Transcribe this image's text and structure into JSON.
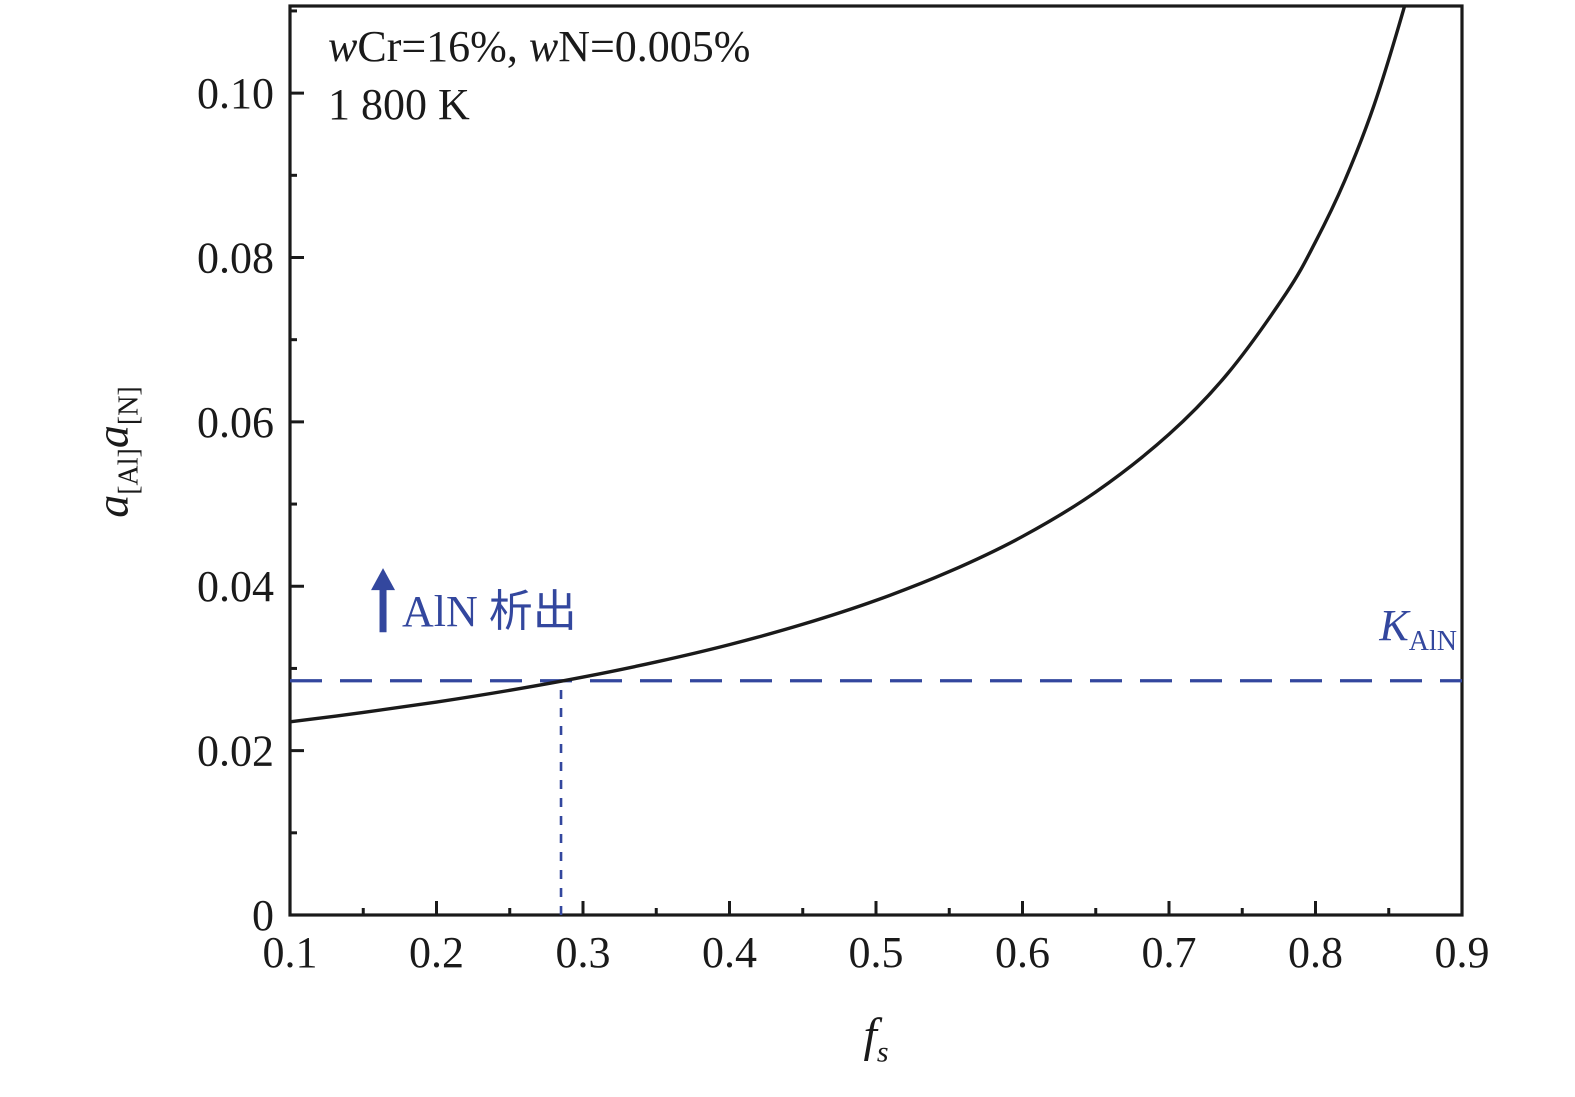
{
  "page": {
    "background": "#ffffff"
  },
  "colors": {
    "curve": "#1a1a1a",
    "axis": "#1a1a1a",
    "accent_blue": "#33479e"
  },
  "labels": {
    "condition": {
      "w1": "w",
      "t1": "Cr=16%, ",
      "w2": "w",
      "t2": "N=0.005%",
      "line2": "1 800 K"
    },
    "ylabel": {
      "a1": "a",
      "s1": "[Al]",
      "a2": "a",
      "s2": "[N]"
    },
    "xlabel": {
      "f": "f",
      "s": "s"
    },
    "kaln": {
      "k": "K",
      "sub": "AlN"
    },
    "aln_annotation": {
      "text": "AlN 析出"
    }
  },
  "chart_data": {
    "type": "line",
    "title": "",
    "xlabel": "f_s",
    "ylabel": "a_[Al] a_[N]",
    "xlim": [
      0.1,
      0.9
    ],
    "ylim": [
      0,
      0.1106
    ],
    "grid": false,
    "legend": "none",
    "x_ticks": [
      0.1,
      0.2,
      0.3,
      0.4,
      0.5,
      0.6,
      0.7,
      0.8,
      0.9
    ],
    "x_tick_labels": [
      "0.1",
      "0.2",
      "0.3",
      "0.4",
      "0.5",
      "0.6",
      "0.7",
      "0.8",
      "0.9"
    ],
    "x_minor_ticks": [
      0.15,
      0.25,
      0.35,
      0.45,
      0.55,
      0.65,
      0.75,
      0.85
    ],
    "y_ticks": [
      0,
      0.02,
      0.04,
      0.06,
      0.08,
      0.1
    ],
    "y_tick_labels": [
      "0",
      "0.02",
      "0.04",
      "0.06",
      "0.08",
      "0.10"
    ],
    "y_minor_ticks": [
      0.01,
      0.03,
      0.05,
      0.07,
      0.09,
      0.11
    ],
    "series": [
      {
        "name": "a[Al]a[N] vs fs (wCr=16%, wN=0.005%, 1800 K)",
        "color": "#1a1a1a",
        "x": [
          0.1,
          0.15,
          0.2,
          0.25,
          0.3,
          0.35,
          0.4,
          0.45,
          0.5,
          0.55,
          0.6,
          0.65,
          0.7,
          0.74,
          0.78,
          0.8,
          0.82,
          0.84,
          0.86,
          0.87,
          0.875
        ],
        "y": [
          0.0235,
          0.02464,
          0.02591,
          0.02734,
          0.02895,
          0.03079,
          0.0329,
          0.03537,
          0.03828,
          0.04178,
          0.04606,
          0.05147,
          0.05849,
          0.06587,
          0.07566,
          0.08191,
          0.08937,
          0.09855,
          0.1101,
          0.11708,
          0.12095
        ]
      }
    ],
    "equilibrium_line": {
      "label": "K_AlN",
      "y": 0.0285,
      "color": "#33479e",
      "style": "long-dash"
    },
    "precipitation_marker": {
      "x": 0.285,
      "y_top": 0.0285,
      "color": "#33479e",
      "style": "short-dash"
    },
    "arrow_annotation": {
      "x": 0.1635,
      "y_from": 0.0344,
      "y_to": 0.0422,
      "color": "#33479e"
    },
    "annotations": [
      "wCr=16%, wN=0.005%",
      "1 800 K",
      "AlN 析出",
      "K_AlN"
    ]
  }
}
